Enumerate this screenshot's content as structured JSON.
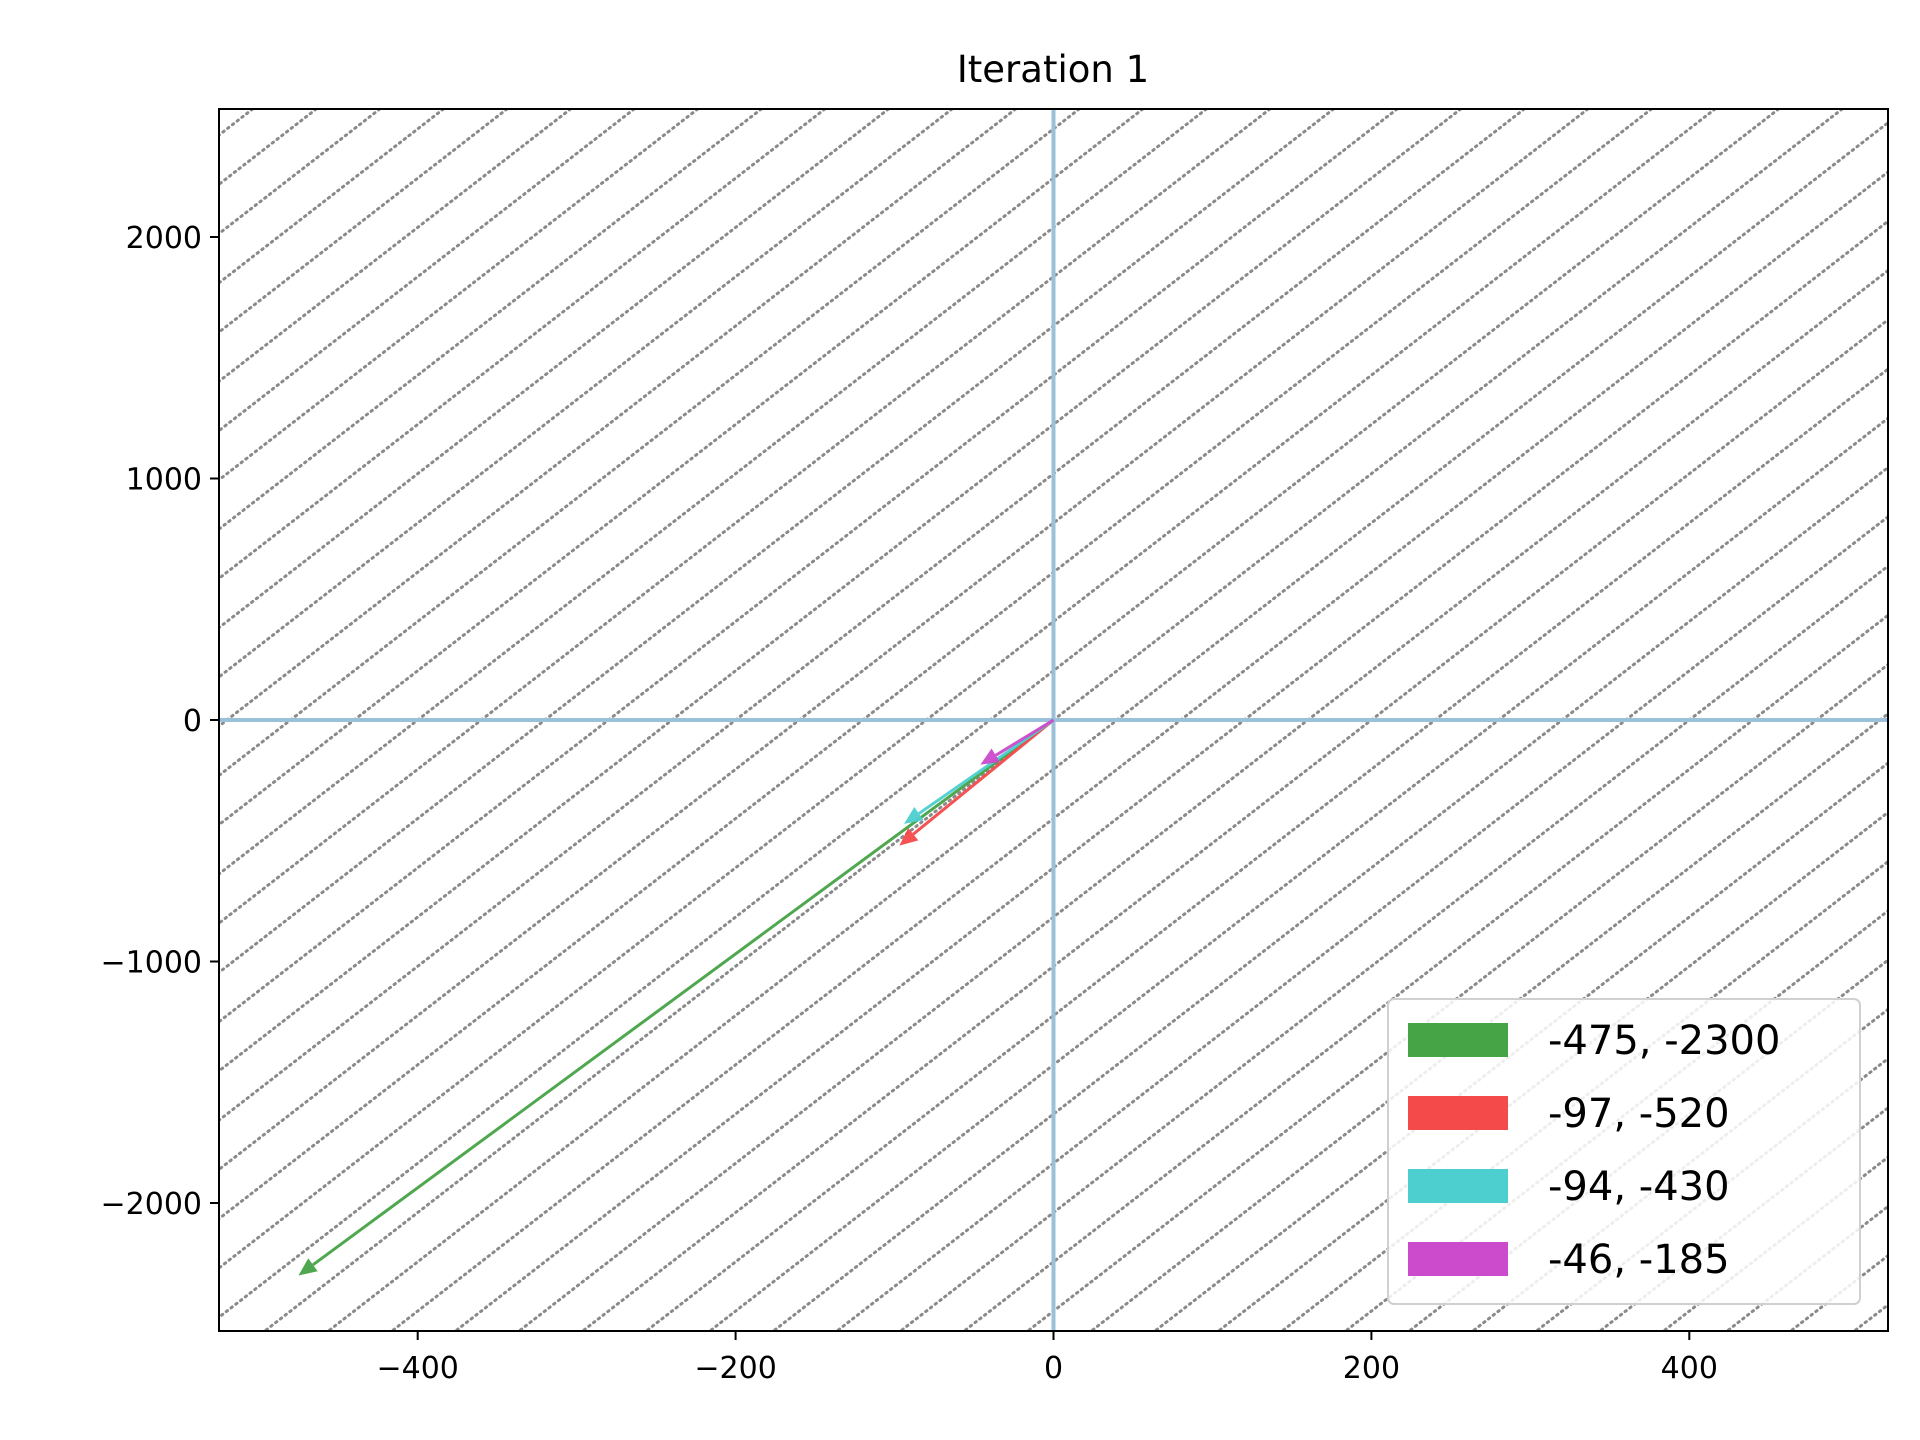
{
  "chart_data": {
    "type": "vector-field",
    "title": "Iteration 1",
    "xlabel": "",
    "ylabel": "",
    "xlim": [
      -525,
      525
    ],
    "ylim": [
      -2530,
      2530
    ],
    "x_ticks": [
      {
        "value": -400,
        "label": "−400"
      },
      {
        "value": -200,
        "label": "−200"
      },
      {
        "value": 0,
        "label": "0"
      },
      {
        "value": 200,
        "label": "200"
      },
      {
        "value": 400,
        "label": "400"
      }
    ],
    "y_ticks": [
      {
        "value": 2000,
        "label": "2000"
      },
      {
        "value": 1000,
        "label": "1000"
      },
      {
        "value": 0,
        "label": "0"
      },
      {
        "value": -1000,
        "label": "−1000"
      },
      {
        "value": -2000,
        "label": "−2000"
      }
    ],
    "axis_lines": {
      "x": 0,
      "y": 0,
      "color": "#9ac1d9"
    },
    "background_lines": {
      "style": "dotted",
      "color": "#8a8a8a",
      "direction": [
        101,
        515
      ],
      "spacing_x_at_y0": 40
    },
    "series": [
      {
        "name": "-475, -2300",
        "x": -475,
        "y": -2300,
        "color": "#46a346"
      },
      {
        "name": "-97, -520",
        "x": -97,
        "y": -520,
        "color": "#f54a4a"
      },
      {
        "name": "-94, -430",
        "x": -94,
        "y": -430,
        "color": "#4ecfcf"
      },
      {
        "name": "-46, -185",
        "x": -46,
        "y": -185,
        "color": "#cc4acc"
      }
    ],
    "legend": {
      "placement": "bottom-right"
    },
    "grid": false
  }
}
